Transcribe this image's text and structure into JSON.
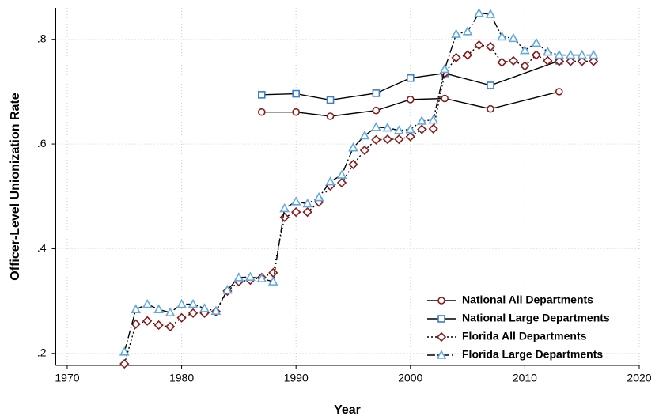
{
  "chart_data": {
    "type": "line",
    "x_label": "Year",
    "y_label": "Officer-Level Unionization Rate",
    "xlim": [
      1969,
      2020
    ],
    "xticks": [
      1970,
      1980,
      1990,
      2000,
      2010,
      2020
    ],
    "ylim": [
      0.177,
      0.86
    ],
    "yticks": [
      {
        "value": 0.2,
        "label": ".2"
      },
      {
        "value": 0.4,
        "label": ".4"
      },
      {
        "value": 0.6,
        "label": ".6"
      },
      {
        "value": 0.8,
        "label": ".8"
      }
    ],
    "grid": true,
    "legend": "bottom-right",
    "series": [
      {
        "name": "National All Departments",
        "color": "#8b1a1a",
        "marker": "circle",
        "dash": "solid",
        "x": [
          1987,
          1990,
          1993,
          1997,
          2000,
          2003,
          2007,
          2013
        ],
        "values": [
          0.661,
          0.661,
          0.653,
          0.664,
          0.685,
          0.687,
          0.667,
          0.7
        ]
      },
      {
        "name": "National Large Departments",
        "color": "#3a7fc8",
        "marker": "square",
        "dash": "solid",
        "x": [
          1987,
          1990,
          1993,
          1997,
          2000,
          2003,
          2007,
          2013
        ],
        "values": [
          0.694,
          0.696,
          0.684,
          0.697,
          0.726,
          0.735,
          0.712,
          0.759
        ]
      },
      {
        "name": "Florida All Departments",
        "color": "#8b1a1a",
        "marker": "diamond",
        "dash": "dot",
        "x": [
          1975,
          1976,
          1977,
          1978,
          1979,
          1980,
          1981,
          1982,
          1983,
          1984,
          1985,
          1986,
          1987,
          1988,
          1989,
          1990,
          1991,
          1992,
          1993,
          1994,
          1995,
          1996,
          1997,
          1998,
          1999,
          2000,
          2001,
          2002,
          2003,
          2004,
          2005,
          2006,
          2007,
          2008,
          2009,
          2010,
          2011,
          2012,
          2013,
          2014,
          2015,
          2016
        ],
        "values": [
          0.18,
          0.256,
          0.262,
          0.254,
          0.251,
          0.268,
          0.277,
          0.277,
          0.28,
          0.319,
          0.337,
          0.34,
          0.345,
          0.354,
          0.46,
          0.47,
          0.47,
          0.489,
          0.52,
          0.526,
          0.561,
          0.588,
          0.608,
          0.609,
          0.609,
          0.614,
          0.628,
          0.629,
          0.735,
          0.765,
          0.77,
          0.789,
          0.786,
          0.756,
          0.759,
          0.749,
          0.77,
          0.759,
          0.758,
          0.758,
          0.758,
          0.758
        ]
      },
      {
        "name": "Florida Large Departments",
        "color": "#5fa8e0",
        "marker": "triangle",
        "dash": "dashdot",
        "x": [
          1975,
          1976,
          1977,
          1978,
          1979,
          1980,
          1981,
          1982,
          1983,
          1984,
          1985,
          1986,
          1987,
          1988,
          1989,
          1990,
          1991,
          1992,
          1993,
          1994,
          1995,
          1996,
          1997,
          1998,
          1999,
          2000,
          2001,
          2002,
          2003,
          2004,
          2005,
          2006,
          2007,
          2008,
          2009,
          2010,
          2011,
          2012,
          2013,
          2014,
          2015,
          2016
        ],
        "values": [
          0.203,
          0.284,
          0.294,
          0.284,
          0.278,
          0.294,
          0.294,
          0.286,
          0.281,
          0.321,
          0.345,
          0.346,
          0.343,
          0.337,
          0.477,
          0.49,
          0.486,
          0.498,
          0.528,
          0.541,
          0.593,
          0.616,
          0.632,
          0.631,
          0.626,
          0.628,
          0.644,
          0.646,
          0.743,
          0.81,
          0.815,
          0.85,
          0.848,
          0.805,
          0.802,
          0.779,
          0.793,
          0.776,
          0.77,
          0.77,
          0.77,
          0.77
        ]
      }
    ]
  }
}
